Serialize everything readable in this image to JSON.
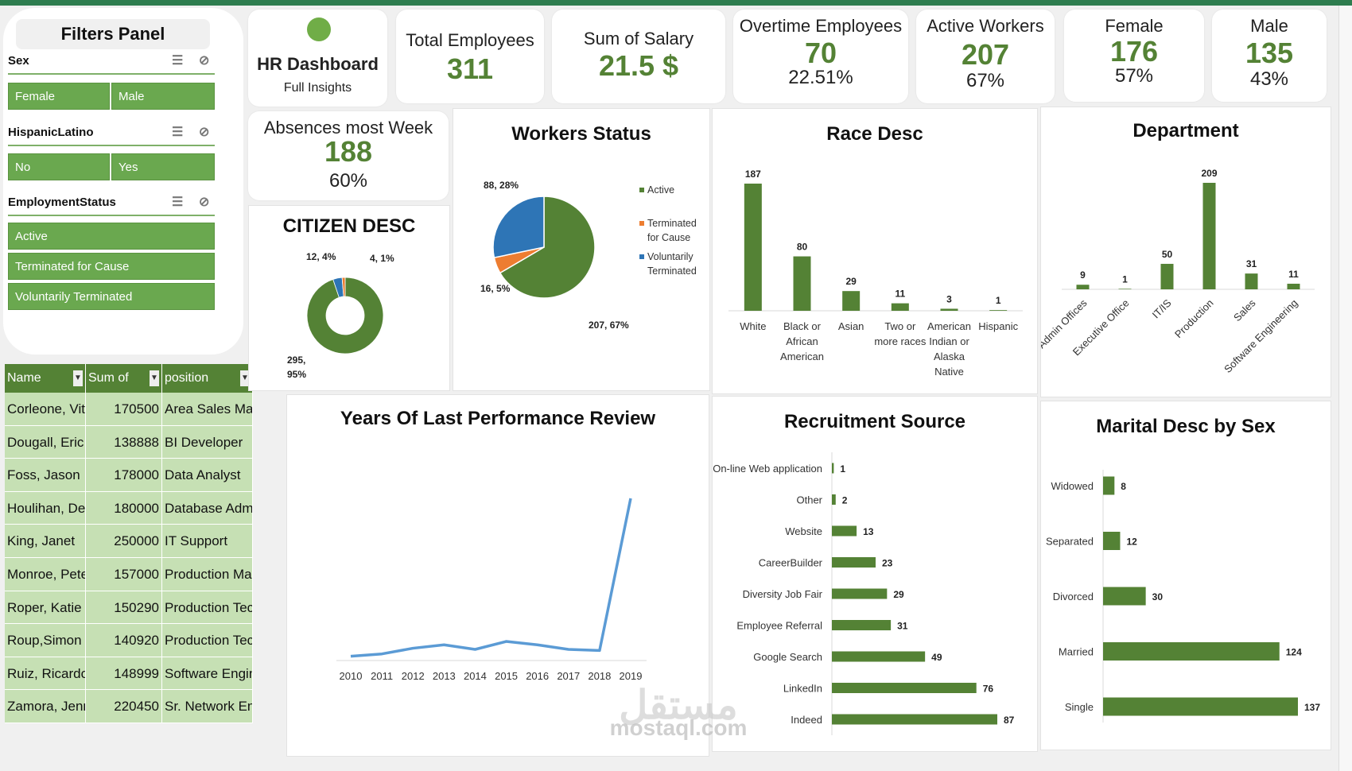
{
  "filters": {
    "title": "Filters Panel",
    "slicers": [
      {
        "label": "Sex",
        "items": [
          "Female",
          "Male"
        ]
      },
      {
        "label": "HispanicLatino",
        "items": [
          "No",
          "Yes"
        ]
      },
      {
        "label": "EmploymentStatus",
        "items": [
          "Active",
          "Terminated for Cause",
          "Voluntarily Terminated"
        ]
      }
    ],
    "multi_select_icon": "multi-select-icon",
    "clear_filter_icon": "clear-filter-icon"
  },
  "header": {
    "title": "HR Dashboard",
    "subtitle": "Full Insights"
  },
  "kpis": {
    "total": {
      "title": "Total  Employees",
      "value": "311"
    },
    "salary": {
      "title": "Sum of Salary",
      "value": "21.5 $"
    },
    "overtime": {
      "title": "Overtime Employees",
      "value": "70",
      "pct": "22.51%"
    },
    "active": {
      "title": "Active Workers",
      "value": "207",
      "pct": "67%"
    },
    "female": {
      "title": "Female",
      "value": "176",
      "pct": "57%"
    },
    "male": {
      "title": "Male",
      "value": "135",
      "pct": "43%"
    },
    "absences": {
      "title": "Absences most Week",
      "value": "188",
      "pct": "60%"
    }
  },
  "table": {
    "headers": [
      "Name",
      "Sum of Salary",
      "position"
    ],
    "rows": [
      [
        "Corleone, Vito",
        "170500",
        "Area Sales Manager"
      ],
      [
        "Dougall, Eric",
        "138888",
        "BI Developer"
      ],
      [
        "Foss, Jason",
        "178000",
        "Data Analyst"
      ],
      [
        "Houlihan, Debra",
        "180000",
        "Database Administrator"
      ],
      [
        "King, Janet",
        "250000",
        "IT Support"
      ],
      [
        "Monroe, Peter",
        "157000",
        "Production Manager"
      ],
      [
        "Roper, Katie",
        "150290",
        "Production Technician I"
      ],
      [
        "Roup,Simon",
        "140920",
        "Production Technician II"
      ],
      [
        "Ruiz, Ricardo",
        "148999",
        "Software Engineer"
      ],
      [
        "Zamora, Jennifer",
        "220450",
        "Sr. Network Engineer"
      ]
    ]
  },
  "watermark": {
    "arabic": "مستقل",
    "latin": "mostaql.com"
  },
  "colors": {
    "green": "#548235",
    "blue": "#2e75b6",
    "orange": "#ed7d31",
    "line": "#5b9bd5"
  },
  "chart_data": [
    {
      "type": "pie",
      "title": "Workers Status",
      "categories": [
        "Active",
        "Terminated for Cause",
        "Voluntarily Terminated"
      ],
      "values": [
        207,
        16,
        88
      ],
      "labels": [
        "207, 67%",
        "16, 5%",
        "88, 28%"
      ],
      "legend": [
        "Active",
        "Terminated for Cause",
        "Voluntarily Terminated"
      ],
      "colors": [
        "#548235",
        "#ed7d31",
        "#2e75b6"
      ]
    },
    {
      "type": "pie",
      "title": "CITIZEN DESC",
      "values": [
        295,
        12,
        4
      ],
      "labels": [
        "295, 95%",
        "12, 4%",
        "4, 1%"
      ],
      "colors": [
        "#548235",
        "#2e75b6",
        "#ed7d31"
      ]
    },
    {
      "type": "bar",
      "title": "Race Desc",
      "categories": [
        "White",
        "Black or African American",
        "Asian",
        "Two or more races",
        "American Indian or Alaska Native",
        "Hispanic"
      ],
      "values": [
        187,
        80,
        29,
        11,
        3,
        1
      ]
    },
    {
      "type": "bar",
      "title": "Department",
      "categories": [
        "Admin Offices",
        "Executive Office",
        "IT/IS",
        "Production",
        "Sales",
        "Software Engineering"
      ],
      "values": [
        9,
        1,
        50,
        209,
        31,
        11
      ]
    },
    {
      "type": "line",
      "title": "Years Of Last Performance Review",
      "x": [
        "2010",
        "2011",
        "2012",
        "2013",
        "2014",
        "2015",
        "2016",
        "2017",
        "2018",
        "2019"
      ],
      "values": [
        1,
        3,
        8,
        11,
        7,
        14,
        11,
        7,
        6,
        140
      ]
    },
    {
      "type": "bar",
      "orientation": "horizontal",
      "title": "Recruitment Source",
      "categories": [
        "On-line Web application",
        "Other",
        "Website",
        "CareerBuilder",
        "Diversity Job Fair",
        "Employee Referral",
        "Google Search",
        "LinkedIn",
        "Indeed"
      ],
      "values": [
        1,
        2,
        13,
        23,
        29,
        31,
        49,
        76,
        87
      ]
    },
    {
      "type": "bar",
      "orientation": "horizontal",
      "title": "Marital Desc by Sex",
      "categories": [
        "Widowed",
        "Separated",
        "Divorced",
        "Married",
        "Single"
      ],
      "values": [
        8,
        12,
        30,
        124,
        137
      ]
    }
  ]
}
